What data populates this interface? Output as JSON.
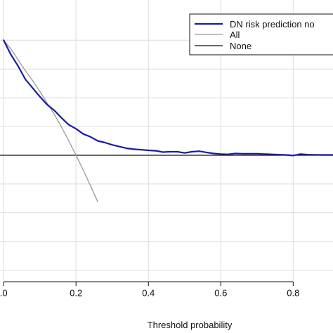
{
  "chart_data": {
    "type": "line",
    "title": "",
    "xlabel": "Threshold probability",
    "ylabel": "",
    "xlim": [
      -0.01,
      0.91
    ],
    "ylim": [
      -0.22,
      0.27
    ],
    "grid": true,
    "legend_position": "top-right",
    "x_ticks": [
      0.0,
      0.2,
      0.4,
      0.6,
      0.8
    ],
    "x_tick_labels": [
      ".0",
      "0.2",
      "0.4",
      "0.6",
      "0.8"
    ],
    "y_tick_values": [
      -0.2,
      -0.15,
      -0.1,
      -0.05,
      0.0,
      0.05,
      0.1,
      0.15,
      0.2
    ],
    "series": [
      {
        "name": "DN risk prediction no",
        "color": "#1a1aa8",
        "points": [
          [
            0.0,
            0.2
          ],
          [
            0.02,
            0.175
          ],
          [
            0.04,
            0.155
          ],
          [
            0.06,
            0.132
          ],
          [
            0.08,
            0.117
          ],
          [
            0.1,
            0.102
          ],
          [
            0.12,
            0.088
          ],
          [
            0.14,
            0.078
          ],
          [
            0.16,
            0.065
          ],
          [
            0.18,
            0.053
          ],
          [
            0.2,
            0.046
          ],
          [
            0.22,
            0.037
          ],
          [
            0.24,
            0.032
          ],
          [
            0.26,
            0.025
          ],
          [
            0.28,
            0.022
          ],
          [
            0.3,
            0.018
          ],
          [
            0.32,
            0.015
          ],
          [
            0.34,
            0.012
          ],
          [
            0.36,
            0.0105
          ],
          [
            0.38,
            0.0095
          ],
          [
            0.4,
            0.0085
          ],
          [
            0.42,
            0.0078
          ],
          [
            0.44,
            0.0055
          ],
          [
            0.46,
            0.006
          ],
          [
            0.48,
            0.006
          ],
          [
            0.5,
            0.004
          ],
          [
            0.52,
            0.006
          ],
          [
            0.54,
            0.007
          ],
          [
            0.56,
            0.005
          ],
          [
            0.58,
            0.003
          ],
          [
            0.6,
            0.002
          ],
          [
            0.62,
            0.0015
          ],
          [
            0.64,
            0.003
          ],
          [
            0.66,
            0.0025
          ],
          [
            0.68,
            0.0025
          ],
          [
            0.7,
            0.0025
          ],
          [
            0.72,
            0.002
          ],
          [
            0.74,
            0.0015
          ],
          [
            0.76,
            0.001
          ],
          [
            0.78,
            0.0005
          ],
          [
            0.8,
            -0.0005
          ],
          [
            0.82,
            0.002
          ],
          [
            0.84,
            0.001
          ],
          [
            0.86,
            0.0008
          ],
          [
            0.88,
            0.0005
          ],
          [
            0.91,
            0.0005
          ]
        ]
      },
      {
        "name": "All",
        "color": "#999999",
        "points": [
          [
            0.0,
            0.2
          ],
          [
            0.02,
            0.185
          ],
          [
            0.04,
            0.166
          ],
          [
            0.06,
            0.147
          ],
          [
            0.08,
            0.13
          ],
          [
            0.1,
            0.111
          ],
          [
            0.12,
            0.091
          ],
          [
            0.14,
            0.071
          ],
          [
            0.16,
            0.049
          ],
          [
            0.18,
            0.025
          ],
          [
            0.2,
            0.0
          ],
          [
            0.22,
            -0.026
          ],
          [
            0.24,
            -0.053
          ],
          [
            0.26,
            -0.081
          ]
        ]
      },
      {
        "name": "None",
        "color": "#111111",
        "points": [
          [
            -0.01,
            0.0
          ],
          [
            0.91,
            0.0
          ]
        ]
      }
    ]
  }
}
